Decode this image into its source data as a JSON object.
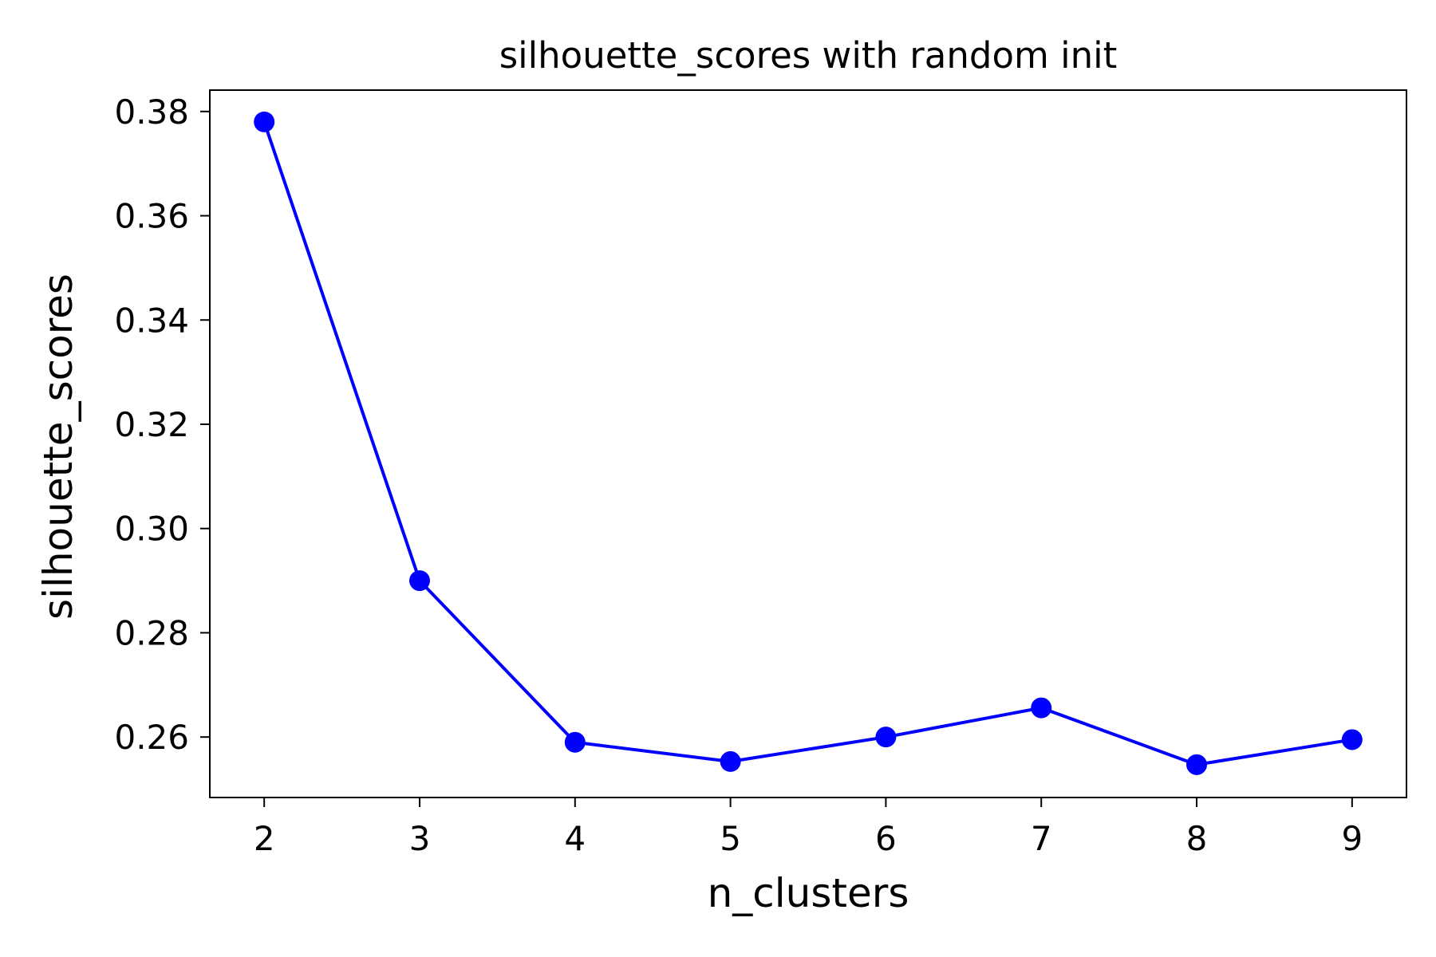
{
  "chart_data": {
    "type": "line",
    "title": "silhouette_scores with random init",
    "xlabel": "n_clusters",
    "ylabel": "silhouette_scores",
    "x": [
      2,
      3,
      4,
      5,
      6,
      7,
      8,
      9
    ],
    "series": [
      {
        "values": [
          0.378,
          0.29,
          0.259,
          0.2553,
          0.26,
          0.2656,
          0.2547,
          0.2595
        ],
        "color": "#0000ff",
        "marker": "circle"
      }
    ],
    "xticks": [
      "2",
      "3",
      "4",
      "5",
      "6",
      "7",
      "8",
      "9"
    ],
    "yticks": [
      "0.26",
      "0.28",
      "0.30",
      "0.32",
      "0.34",
      "0.36",
      "0.38"
    ],
    "xlim": [
      1.65,
      9.35
    ],
    "ylim": [
      0.2484,
      0.3841
    ],
    "grid": false,
    "legend": "none"
  }
}
